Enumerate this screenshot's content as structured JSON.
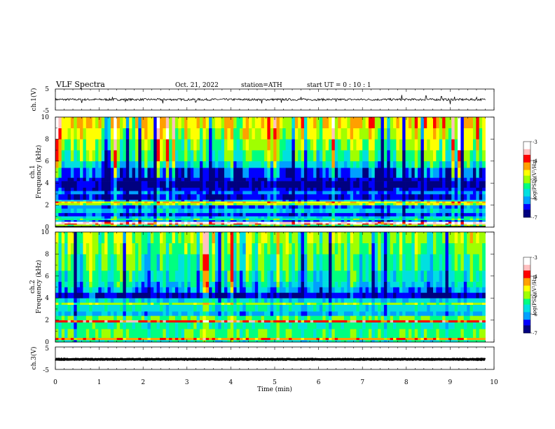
{
  "header": {
    "title": "VLF  Spectra",
    "date": "Oct. 21, 2022",
    "station": "station=ATH",
    "start": "start  UT  =    0  : 10 : 1"
  },
  "colors": {
    "spectrum": [
      "#000080",
      "#0000ff",
      "#00a0ff",
      "#00e0e0",
      "#00ff80",
      "#a0ff00",
      "#ffff00",
      "#ffa000",
      "#ff0000",
      "#ffc0c0",
      "#ffffff"
    ]
  },
  "chart_data": [
    {
      "id": "ch1-waveform",
      "type": "line",
      "ylabel": "ch.1(V)",
      "ylim": [
        -5,
        5
      ],
      "yticks": [
        "5",
        "-5"
      ],
      "xlim": [
        0,
        10
      ],
      "trace_color": "#000000",
      "baseline_v": 0.0,
      "spikes": [
        {
          "t": 0.6,
          "v": -1.6
        },
        {
          "t": 1.3,
          "v": 1.2
        },
        {
          "t": 1.6,
          "v": -1.0
        },
        {
          "t": 2.45,
          "v": -1.8
        },
        {
          "t": 3.2,
          "v": -1.3
        },
        {
          "t": 4.7,
          "v": -1.8
        },
        {
          "t": 5.15,
          "v": -1.5
        },
        {
          "t": 5.6,
          "v": 1.2
        },
        {
          "t": 6.4,
          "v": -1.0
        },
        {
          "t": 7.9,
          "v": 2.2
        },
        {
          "t": 8.45,
          "v": 1.8
        },
        {
          "t": 8.8,
          "v": 1.5
        },
        {
          "t": 9.0,
          "v": -2.2
        },
        {
          "t": 9.1,
          "v": 1.3
        },
        {
          "t": 9.6,
          "v": 1.1
        }
      ]
    },
    {
      "id": "ch1-spectrogram",
      "type": "heatmap",
      "ylabel_lines": [
        "ch.1",
        "Frequency  (kHz)"
      ],
      "ylim": [
        0,
        10
      ],
      "yticks": [
        "0",
        "2",
        "4",
        "6",
        "8",
        "10"
      ],
      "xlim": [
        0,
        10
      ],
      "data_end_min": 9.8,
      "colorbar": {
        "label": "log(PSD)(V²/Hz)",
        "range": [
          -7,
          -3
        ],
        "ticks": [
          "-3",
          "-4",
          "-5",
          "-6",
          "-7"
        ]
      },
      "bands_khz": [
        {
          "from": 0.0,
          "to": 0.1,
          "level": 0.0
        },
        {
          "from": 0.1,
          "to": 0.25,
          "level": 0.45
        },
        {
          "from": 0.25,
          "to": 0.35,
          "level": 0.85
        },
        {
          "from": 0.35,
          "to": 0.5,
          "level": 0.9
        },
        {
          "from": 0.5,
          "to": 0.65,
          "level": 0.2
        },
        {
          "from": 0.65,
          "to": 0.8,
          "level": 0.4
        },
        {
          "from": 0.8,
          "to": 1.0,
          "level": 0.3
        },
        {
          "from": 1.0,
          "to": 1.3,
          "level": 0.15
        },
        {
          "from": 1.3,
          "to": 1.7,
          "level": 0.28
        },
        {
          "from": 1.7,
          "to": 2.0,
          "level": 0.2
        },
        {
          "from": 2.0,
          "to": 2.2,
          "level": 0.5
        },
        {
          "from": 2.2,
          "to": 2.35,
          "level": 0.62
        },
        {
          "from": 2.35,
          "to": 2.5,
          "level": 0.25
        },
        {
          "from": 2.5,
          "to": 3.0,
          "level": 0.12
        },
        {
          "from": 3.0,
          "to": 3.3,
          "level": 0.2
        },
        {
          "from": 3.3,
          "to": 3.6,
          "level": 0.1
        },
        {
          "from": 3.6,
          "to": 4.2,
          "level": 0.06
        },
        {
          "from": 4.2,
          "to": 4.5,
          "level": 0.1
        },
        {
          "from": 4.5,
          "to": 5.4,
          "level": 0.16
        },
        {
          "from": 5.4,
          "to": 6.0,
          "level": 0.32
        },
        {
          "from": 6.0,
          "to": 7.0,
          "level": 0.42
        },
        {
          "from": 7.0,
          "to": 8.0,
          "level": 0.48
        },
        {
          "from": 8.0,
          "to": 9.0,
          "level": 0.55
        },
        {
          "from": 9.0,
          "to": 10.0,
          "level": 0.6
        }
      ],
      "gaps_khz": [
        {
          "from": 0.0,
          "to": 0.1
        }
      ]
    },
    {
      "id": "ch2-spectrogram",
      "type": "heatmap",
      "ylabel_lines": [
        "ch.2",
        "Frequency  (kHz)"
      ],
      "ylim": [
        0,
        10
      ],
      "yticks": [
        "0",
        "2",
        "4",
        "6",
        "8",
        "10"
      ],
      "xlim": [
        0,
        10
      ],
      "data_end_min": 9.8,
      "colorbar": {
        "label": "log(PSD)(V²/Hz)",
        "range": [
          -7,
          -3
        ],
        "ticks": [
          "-3",
          "-4",
          "-5",
          "-6",
          "-7"
        ]
      },
      "bands_khz": [
        {
          "from": 0.0,
          "to": 0.2,
          "level": 0.35
        },
        {
          "from": 0.2,
          "to": 0.4,
          "level": 0.7
        },
        {
          "from": 0.4,
          "to": 1.2,
          "level": 0.42
        },
        {
          "from": 1.2,
          "to": 1.8,
          "level": 0.38
        },
        {
          "from": 1.8,
          "to": 2.0,
          "level": 0.78
        },
        {
          "from": 2.0,
          "to": 2.4,
          "level": 0.45
        },
        {
          "from": 2.4,
          "to": 2.8,
          "level": 0.25
        },
        {
          "from": 2.8,
          "to": 3.4,
          "level": 0.33
        },
        {
          "from": 3.4,
          "to": 3.6,
          "level": 0.5
        },
        {
          "from": 3.6,
          "to": 4.0,
          "level": 0.3
        },
        {
          "from": 4.0,
          "to": 4.5,
          "level": 0.1
        },
        {
          "from": 4.5,
          "to": 5.0,
          "level": 0.22
        },
        {
          "from": 5.0,
          "to": 5.5,
          "level": 0.3
        },
        {
          "from": 5.5,
          "to": 6.5,
          "level": 0.35
        },
        {
          "from": 6.5,
          "to": 8.0,
          "level": 0.4
        },
        {
          "from": 8.0,
          "to": 9.0,
          "level": 0.45
        },
        {
          "from": 9.0,
          "to": 10.0,
          "level": 0.48
        }
      ],
      "gaps_khz": []
    },
    {
      "id": "ch3-waveform",
      "type": "line",
      "ylabel": "ch.3(V)",
      "ylim": [
        -5,
        5
      ],
      "yticks": [
        "5",
        "-5"
      ],
      "xlim": [
        0,
        10
      ],
      "xlabel": "Time  (min)",
      "xticks": [
        "0",
        "1",
        "2",
        "3",
        "4",
        "5",
        "6",
        "7",
        "8",
        "9",
        "10"
      ],
      "trace_color": "#000000",
      "baseline_v": -0.5,
      "spikes": []
    }
  ]
}
